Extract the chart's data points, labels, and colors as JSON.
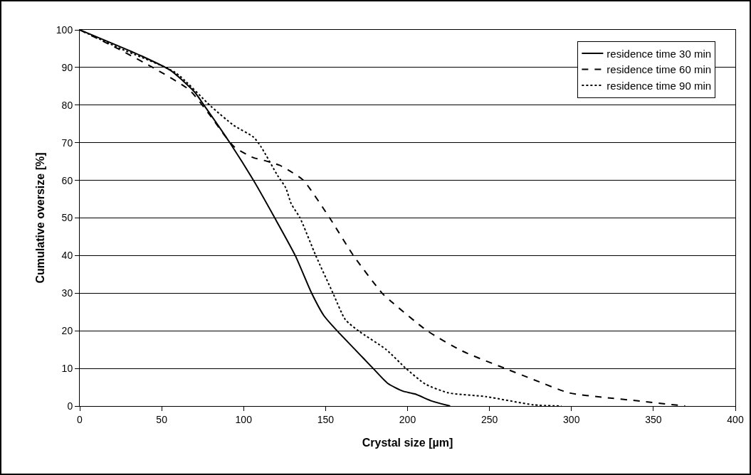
{
  "chart_data": {
    "type": "line",
    "xlabel": "Crystal size [µm]",
    "ylabel": "Cumulative oversize [%]",
    "xlim": [
      0,
      400
    ],
    "xticks": [
      0,
      50,
      100,
      150,
      200,
      250,
      300,
      350,
      400
    ],
    "ylim": [
      0,
      100
    ],
    "yticks": [
      0,
      10,
      20,
      30,
      40,
      50,
      60,
      70,
      80,
      90,
      100
    ],
    "grid": "y",
    "legend": "top right",
    "marker": "none",
    "series": [
      {
        "name": "residence time 30 min",
        "color": "#000000",
        "line_style": "solid",
        "x": [
          0,
          38,
          55.5,
          70,
          75.8,
          91.6,
          106,
          119,
          131.5,
          141.5,
          149,
          157,
          168,
          179,
          188,
          197,
          204.5,
          215,
          226
        ],
        "values": [
          100,
          93,
          89.2,
          83.5,
          80,
          70,
          60,
          50,
          40,
          30,
          24,
          20,
          15,
          10,
          6,
          4,
          3.2,
          1.3,
          0
        ]
      },
      {
        "name": "residence time 60 min",
        "color": "#000000",
        "line_style": "dashed",
        "x": [
          0,
          23.7,
          45.4,
          67,
          78.6,
          94,
          105.6,
          114,
          122,
          130,
          136.5,
          152.5,
          167,
          184.5,
          190,
          212,
          233.5,
          259.5,
          277,
          298.6,
          320,
          342,
          369.4
        ],
        "values": [
          100,
          94.9,
          89.8,
          84,
          77.8,
          69,
          66.1,
          65.1,
          64,
          62,
          60,
          50,
          40,
          30,
          27.8,
          20,
          14.6,
          10,
          7,
          3.5,
          2.3,
          1.3,
          0
        ]
      },
      {
        "name": "residence time 90 min",
        "color": "#000000",
        "line_style": "dotted",
        "x": [
          0,
          25,
          58.5,
          80,
          94,
          106,
          110.5,
          120.7,
          125.7,
          129,
          134.4,
          144,
          154.5,
          162,
          170,
          187,
          199,
          211,
          225,
          247.8,
          277,
          294
        ],
        "values": [
          100,
          95,
          88.6,
          79.7,
          74.6,
          71.5,
          69,
          61.3,
          58,
          53.8,
          50,
          40,
          30,
          23,
          20,
          15,
          10,
          5.8,
          3.5,
          2.5,
          0.3,
          0
        ]
      }
    ]
  }
}
